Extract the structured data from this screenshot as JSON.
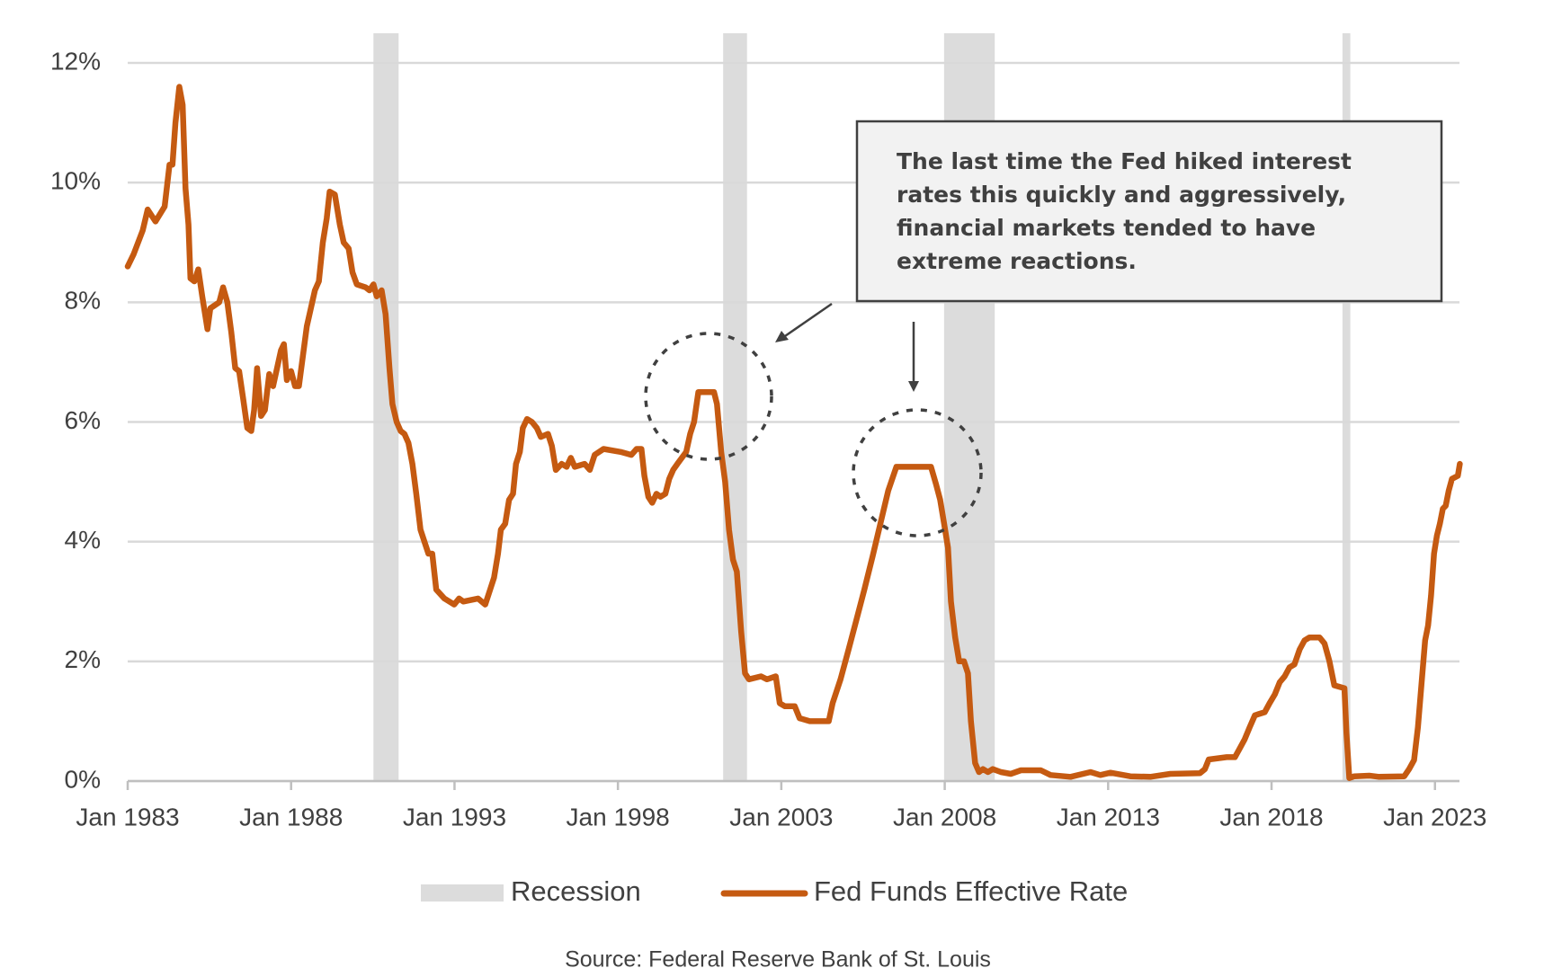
{
  "chart_data": {
    "type": "line",
    "x": [
      1983.0,
      1983.18,
      1983.46,
      1983.61,
      1983.85,
      1984.13,
      1984.28,
      1984.37,
      1984.46,
      1984.58,
      1984.68,
      1984.77,
      1984.86,
      1984.92,
      1985.04,
      1985.16,
      1985.28,
      1985.44,
      1985.53,
      1985.8,
      1985.92,
      1986.05,
      1986.17,
      1986.29,
      1986.41,
      1986.53,
      1986.66,
      1986.78,
      1986.87,
      1986.96,
      1987.08,
      1987.2,
      1987.33,
      1987.45,
      1987.69,
      1987.78,
      1987.87,
      1988.0,
      1988.12,
      1988.24,
      1988.36,
      1988.48,
      1988.73,
      1988.85,
      1988.97,
      1989.09,
      1989.18,
      1989.34,
      1989.49,
      1989.61,
      1989.76,
      1989.88,
      1990.01,
      1990.28,
      1990.4,
      1990.52,
      1990.62,
      1990.77,
      1990.89,
      1991.01,
      1991.1,
      1991.23,
      1991.35,
      1991.47,
      1991.59,
      1991.71,
      1991.83,
      1991.96,
      1992.08,
      1992.2,
      1992.32,
      1992.44,
      1992.69,
      1992.99,
      1993.14,
      1993.27,
      1993.72,
      1993.94,
      1994.09,
      1994.21,
      1994.33,
      1994.42,
      1994.55,
      1994.67,
      1994.79,
      1994.88,
      1995.0,
      1995.09,
      1995.22,
      1995.37,
      1995.52,
      1995.64,
      1995.86,
      1995.98,
      1996.1,
      1996.28,
      1996.43,
      1996.56,
      1996.68,
      1996.98,
      1997.14,
      1997.29,
      1997.56,
      1998.08,
      1998.41,
      1998.57,
      1998.72,
      1998.81,
      1998.93,
      1999.05,
      1999.18,
      1999.3,
      1999.45,
      1999.57,
      1999.69,
      1999.82,
      2000.09,
      2000.21,
      2000.33,
      2000.46,
      2000.94,
      2001.03,
      2001.16,
      2001.28,
      2001.4,
      2001.52,
      2001.64,
      2001.77,
      2001.89,
      2002.01,
      2002.38,
      2002.56,
      2002.83,
      2002.95,
      2003.11,
      2003.41,
      2003.56,
      2003.87,
      2004.45,
      2004.57,
      2004.81,
      2005.06,
      2005.3,
      2005.54,
      2005.79,
      2006.03,
      2006.27,
      2006.52,
      2007.58,
      2007.74,
      2007.86,
      2007.98,
      2008.1,
      2008.19,
      2008.32,
      2008.44,
      2008.59,
      2008.71,
      2008.8,
      2008.93,
      2009.05,
      2009.17,
      2009.32,
      2009.47,
      2009.72,
      2010.02,
      2010.33,
      2010.94,
      2011.24,
      2011.85,
      2012.46,
      2012.76,
      2013.07,
      2013.68,
      2014.29,
      2014.9,
      2015.81,
      2015.96,
      2016.08,
      2016.63,
      2016.88,
      2017.03,
      2017.18,
      2017.33,
      2017.49,
      2017.79,
      2017.94,
      2018.1,
      2018.25,
      2018.4,
      2018.55,
      2018.7,
      2018.86,
      2019.01,
      2019.16,
      2019.47,
      2019.62,
      2019.77,
      2019.92,
      2020.23,
      2020.29,
      2020.38,
      2020.53,
      2020.99,
      2021.29,
      2022.06,
      2022.21,
      2022.36,
      2022.48,
      2022.6,
      2022.7,
      2022.79,
      2022.88,
      2022.97,
      2023.06,
      2023.15,
      2023.24,
      2023.33,
      2023.42,
      2023.52,
      2023.7,
      2023.76
    ],
    "series": [
      {
        "name": "Fed Funds Effective Rate",
        "color": "#c55a11",
        "values": [
          8.6,
          8.8,
          9.2,
          9.55,
          9.35,
          9.6,
          10.3,
          10.3,
          11.0,
          11.6,
          11.3,
          9.9,
          9.3,
          8.4,
          8.35,
          8.55,
          8.1,
          7.55,
          7.9,
          8.0,
          8.25,
          8.0,
          7.5,
          6.9,
          6.85,
          6.4,
          5.9,
          5.85,
          6.2,
          6.9,
          6.1,
          6.2,
          6.8,
          6.6,
          7.2,
          7.3,
          6.7,
          6.85,
          6.6,
          6.6,
          7.1,
          7.6,
          8.2,
          8.35,
          9.0,
          9.4,
          9.85,
          9.8,
          9.3,
          9.0,
          8.9,
          8.5,
          8.3,
          8.25,
          8.2,
          8.3,
          8.1,
          8.2,
          7.8,
          6.9,
          6.3,
          6.0,
          5.85,
          5.8,
          5.65,
          5.3,
          4.8,
          4.2,
          4.0,
          3.8,
          3.8,
          3.2,
          3.05,
          2.95,
          3.05,
          3.0,
          3.05,
          2.95,
          3.2,
          3.4,
          3.8,
          4.2,
          4.3,
          4.7,
          4.8,
          5.3,
          5.5,
          5.9,
          6.05,
          6.0,
          5.9,
          5.75,
          5.8,
          5.6,
          5.2,
          5.3,
          5.25,
          5.4,
          5.25,
          5.3,
          5.2,
          5.45,
          5.55,
          5.5,
          5.45,
          5.55,
          5.55,
          5.1,
          4.75,
          4.65,
          4.8,
          4.75,
          4.8,
          5.05,
          5.2,
          5.3,
          5.5,
          5.8,
          6.0,
          6.5,
          6.5,
          6.3,
          5.5,
          5.0,
          4.2,
          3.7,
          3.5,
          2.5,
          1.8,
          1.7,
          1.75,
          1.7,
          1.75,
          1.3,
          1.25,
          1.25,
          1.05,
          1.0,
          1.0,
          1.3,
          1.7,
          2.2,
          2.7,
          3.2,
          3.75,
          4.3,
          4.85,
          5.25,
          5.25,
          4.95,
          4.7,
          4.3,
          3.9,
          3.0,
          2.4,
          2.0,
          2.0,
          1.8,
          1.0,
          0.3,
          0.15,
          0.2,
          0.15,
          0.2,
          0.15,
          0.12,
          0.18,
          0.18,
          0.1,
          0.07,
          0.15,
          0.1,
          0.14,
          0.08,
          0.07,
          0.12,
          0.13,
          0.2,
          0.36,
          0.4,
          0.4,
          0.55,
          0.7,
          0.9,
          1.1,
          1.15,
          1.3,
          1.45,
          1.65,
          1.75,
          1.9,
          1.95,
          2.2,
          2.35,
          2.4,
          2.4,
          2.3,
          2.0,
          1.6,
          1.55,
          0.8,
          0.05,
          0.08,
          0.09,
          0.07,
          0.08,
          0.2,
          0.35,
          0.9,
          1.7,
          2.35,
          2.6,
          3.1,
          3.8,
          4.1,
          4.3,
          4.55,
          4.6,
          4.85,
          5.05,
          5.1,
          5.3
        ]
      }
    ],
    "recessions": {
      "name": "Recession",
      "color": "#dcdcdc",
      "spans": [
        [
          1990.52,
          1991.29
        ],
        [
          2001.22,
          2001.95
        ],
        [
          2007.98,
          2009.53
        ],
        [
          2020.17,
          2020.41
        ]
      ]
    },
    "xlim": [
      1983,
      2023.75
    ],
    "xticks": [
      {
        "value": 1983,
        "label": "Jan 1983"
      },
      {
        "value": 1988,
        "label": "Jan 1988"
      },
      {
        "value": 1993,
        "label": "Jan 1993"
      },
      {
        "value": 1998,
        "label": "Jan 1998"
      },
      {
        "value": 2003,
        "label": "Jan 2003"
      },
      {
        "value": 2008,
        "label": "Jan 2008"
      },
      {
        "value": 2013,
        "label": "Jan 2013"
      },
      {
        "value": 2018,
        "label": "Jan 2018"
      },
      {
        "value": 2023,
        "label": "Jan 2023"
      }
    ],
    "ylim": [
      0,
      12
    ],
    "yticks": [
      {
        "value": 0,
        "label": "0%"
      },
      {
        "value": 2,
        "label": "2%"
      },
      {
        "value": 4,
        "label": "4%"
      },
      {
        "value": 6,
        "label": "6%"
      },
      {
        "value": 8,
        "label": "8%"
      },
      {
        "value": 10,
        "label": "10%"
      },
      {
        "value": 12,
        "label": "12%"
      }
    ],
    "grid": true,
    "annotation": [
      "The last time the Fed hiked interest",
      "rates this quickly and aggressively,",
      "financial markets tended to have",
      "extreme reactions."
    ],
    "source": "Source: Federal Reserve Bank of St. Louis"
  }
}
